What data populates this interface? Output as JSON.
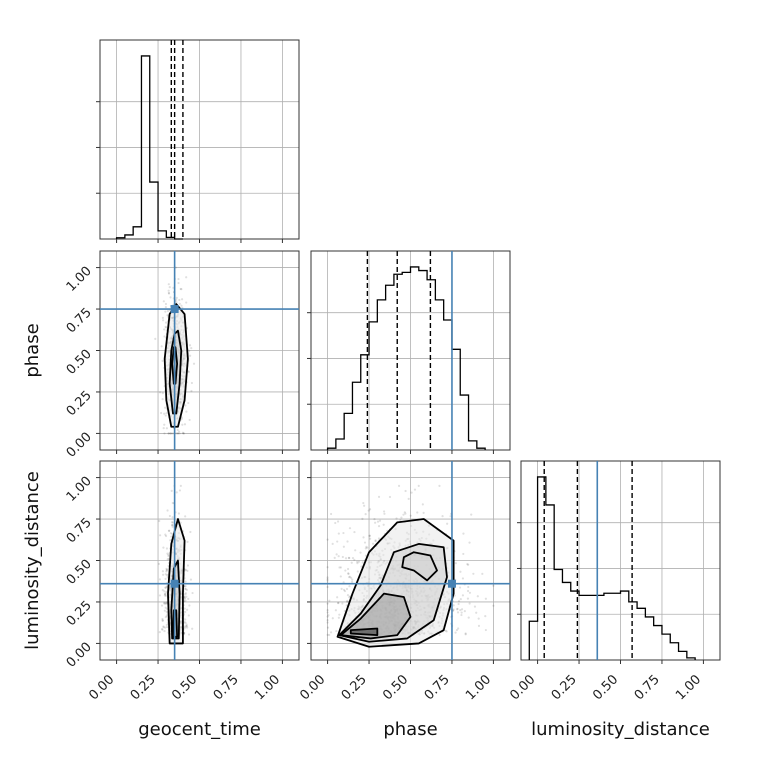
{
  "chart_data": {
    "type": "corner",
    "params": [
      "geocent_time",
      "phase",
      "luminosity_distance"
    ],
    "axis_labels": {
      "x": [
        "geocent_time",
        "phase",
        "luminosity_distance"
      ],
      "y": [
        "",
        "phase",
        "luminosity_distance"
      ]
    },
    "xlim": [
      -0.1,
      1.1
    ],
    "ylim": [
      -0.1,
      1.1
    ],
    "ticks": [
      0.0,
      0.25,
      0.5,
      0.75,
      1.0
    ],
    "tick_labels": [
      "0.00",
      "0.25",
      "0.50",
      "0.75",
      "1.00"
    ],
    "truths": {
      "geocent_time": 0.35,
      "phase": 0.75,
      "luminosity_distance": 0.36
    },
    "truth_color": "#4682b4",
    "grid": true,
    "histograms": {
      "geocent_time": {
        "bin_width": 0.05,
        "start": 0.0,
        "counts": [
          0.006,
          0.02,
          0.06,
          0.9,
          0.28,
          0.04,
          0.008,
          0.0
        ],
        "quantiles": [
          0.33,
          0.35,
          0.4
        ]
      },
      "phase": {
        "bin_width": 0.05,
        "start": 0.0,
        "counts": [
          0.01,
          0.06,
          0.2,
          0.37,
          0.52,
          0.7,
          0.82,
          0.9,
          0.96,
          0.97,
          1.0,
          0.98,
          0.93,
          0.82,
          0.71,
          0.55,
          0.3,
          0.05,
          0.01
        ],
        "quantiles": [
          0.24,
          0.42,
          0.62
        ]
      },
      "luminosity_distance": {
        "bin_width": 0.05,
        "start": -0.05,
        "counts": [
          0.18,
          0.85,
          0.72,
          0.42,
          0.36,
          0.32,
          0.3,
          0.3,
          0.3,
          0.31,
          0.31,
          0.32,
          0.27,
          0.24,
          0.2,
          0.16,
          0.12,
          0.08,
          0.04,
          0.01
        ],
        "quantiles": [
          0.04,
          0.24,
          0.57
        ]
      }
    },
    "contours": {
      "phase_vs_geocent_time": [
        [
          [
            0.33,
            0.04
          ],
          [
            0.37,
            0.04
          ],
          [
            0.41,
            0.2
          ],
          [
            0.43,
            0.45
          ],
          [
            0.41,
            0.72
          ],
          [
            0.36,
            0.78
          ],
          [
            0.32,
            0.72
          ],
          [
            0.29,
            0.45
          ],
          [
            0.3,
            0.2
          ]
        ],
        [
          [
            0.34,
            0.12
          ],
          [
            0.36,
            0.12
          ],
          [
            0.38,
            0.3
          ],
          [
            0.39,
            0.5
          ],
          [
            0.37,
            0.62
          ],
          [
            0.35,
            0.6
          ],
          [
            0.33,
            0.5
          ],
          [
            0.32,
            0.3
          ]
        ],
        [
          [
            0.345,
            0.3
          ],
          [
            0.355,
            0.3
          ],
          [
            0.365,
            0.42
          ],
          [
            0.355,
            0.52
          ],
          [
            0.345,
            0.52
          ],
          [
            0.335,
            0.42
          ]
        ]
      ],
      "luminosity_distance_vs_geocent_time": [
        [
          [
            0.32,
            0.0
          ],
          [
            0.4,
            0.0
          ],
          [
            0.4,
            0.3
          ],
          [
            0.41,
            0.62
          ],
          [
            0.37,
            0.75
          ],
          [
            0.33,
            0.6
          ],
          [
            0.31,
            0.3
          ]
        ],
        [
          [
            0.335,
            0.03
          ],
          [
            0.375,
            0.03
          ],
          [
            0.38,
            0.3
          ],
          [
            0.37,
            0.5
          ],
          [
            0.345,
            0.45
          ],
          [
            0.33,
            0.2
          ]
        ],
        [
          [
            0.34,
            0.04
          ],
          [
            0.365,
            0.04
          ],
          [
            0.36,
            0.2
          ],
          [
            0.345,
            0.2
          ]
        ]
      ],
      "luminosity_distance_vs_phase": [
        [
          [
            0.06,
            0.04
          ],
          [
            0.25,
            -0.02
          ],
          [
            0.55,
            0.0
          ],
          [
            0.7,
            0.08
          ],
          [
            0.76,
            0.3
          ],
          [
            0.76,
            0.62
          ],
          [
            0.58,
            0.75
          ],
          [
            0.42,
            0.73
          ],
          [
            0.25,
            0.55
          ],
          [
            0.15,
            0.3
          ]
        ],
        [
          [
            0.07,
            0.05
          ],
          [
            0.25,
            0.01
          ],
          [
            0.48,
            0.03
          ],
          [
            0.64,
            0.14
          ],
          [
            0.72,
            0.4
          ],
          [
            0.7,
            0.58
          ],
          [
            0.55,
            0.6
          ],
          [
            0.4,
            0.55
          ],
          [
            0.32,
            0.35
          ],
          [
            0.2,
            0.18
          ]
        ],
        [
          [
            0.08,
            0.05
          ],
          [
            0.26,
            0.03
          ],
          [
            0.42,
            0.05
          ],
          [
            0.5,
            0.16
          ],
          [
            0.46,
            0.28
          ],
          [
            0.34,
            0.3
          ],
          [
            0.2,
            0.15
          ]
        ],
        [
          [
            0.45,
            0.46
          ],
          [
            0.52,
            0.44
          ],
          [
            0.6,
            0.38
          ],
          [
            0.66,
            0.44
          ],
          [
            0.62,
            0.53
          ],
          [
            0.52,
            0.55
          ],
          [
            0.46,
            0.52
          ]
        ],
        [
          [
            0.14,
            0.06
          ],
          [
            0.3,
            0.05
          ],
          [
            0.3,
            0.09
          ],
          [
            0.14,
            0.08
          ]
        ]
      ]
    }
  }
}
